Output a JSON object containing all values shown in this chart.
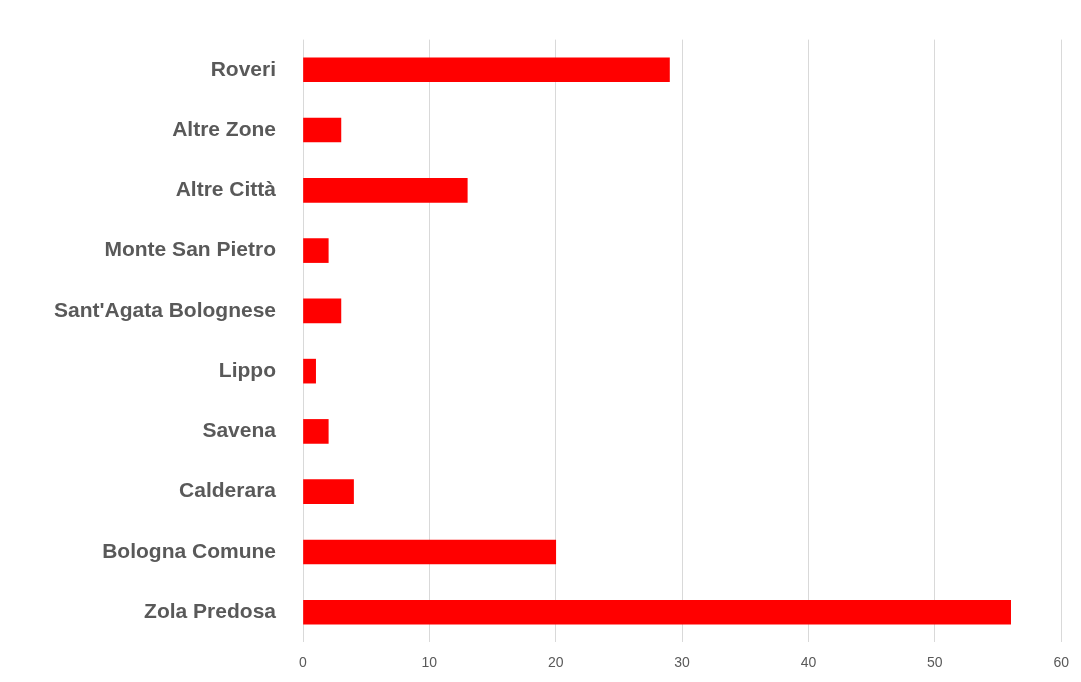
{
  "chart_data": {
    "type": "bar",
    "orientation": "horizontal",
    "categories": [
      "Roveri",
      "Altre Zone",
      "Altre Città",
      "Monte San Pietro",
      "Sant'Agata Bolognese",
      "Lippo",
      "Savena",
      "Calderara",
      "Bologna Comune",
      "Zola Predosa"
    ],
    "values": [
      29,
      3,
      13,
      2,
      3,
      1,
      2,
      4,
      20,
      56
    ],
    "color": "#ff0000",
    "xlim": [
      0,
      60
    ],
    "xticks": [
      0,
      10,
      20,
      30,
      40,
      50,
      60
    ],
    "grid": "x"
  }
}
